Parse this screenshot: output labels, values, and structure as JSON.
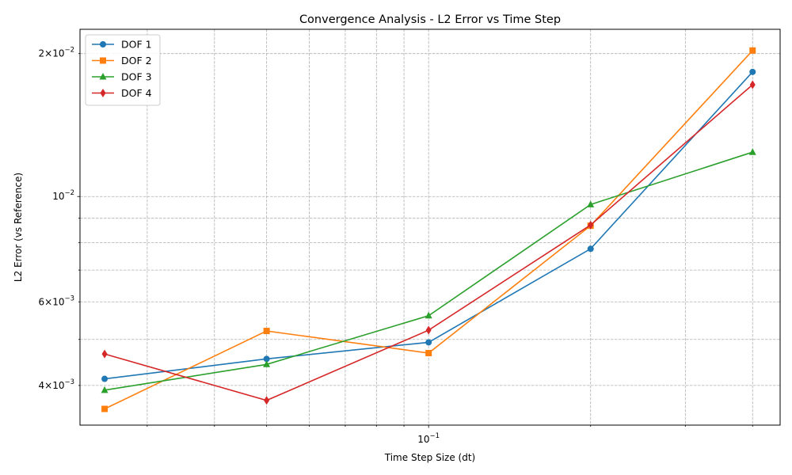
{
  "chart_data": {
    "type": "line",
    "title": "Convergence Analysis - L2 Error vs Time Step",
    "xlabel": "Time Step Size (dt)",
    "ylabel": "L2 Error (vs Reference)",
    "xscale": "log",
    "yscale": "log",
    "xlim": [
      0.0225,
      0.45
    ],
    "ylim": [
      0.0033,
      0.0225
    ],
    "grid": "major and minor, dashed gray",
    "legend_position": "upper-left",
    "x_tick_labels": [
      {
        "value": 0.1,
        "base": "10",
        "exp": "−1"
      }
    ],
    "y_tick_labels": [
      {
        "value": 0.004,
        "mant": "4",
        "base": "10",
        "exp": "−3"
      },
      {
        "value": 0.006,
        "mant": "6",
        "base": "10",
        "exp": "−3"
      },
      {
        "value": 0.01,
        "mant": "",
        "base": "10",
        "exp": "−2"
      },
      {
        "value": 0.02,
        "mant": "2",
        "base": "10",
        "exp": "−2"
      }
    ],
    "x": [
      0.025,
      0.05,
      0.1,
      0.2,
      0.4
    ],
    "series": [
      {
        "name": "DOF 1",
        "color": "#1f77b4",
        "marker": "circle",
        "values": [
          0.00413,
          0.00455,
          0.00493,
          0.00776,
          0.0183
        ]
      },
      {
        "name": "DOF 2",
        "color": "#ff7f0e",
        "marker": "square",
        "values": [
          0.00357,
          0.00521,
          0.00468,
          0.00868,
          0.0203
        ]
      },
      {
        "name": "DOF 3",
        "color": "#2ca02c",
        "marker": "triangle",
        "values": [
          0.00391,
          0.00443,
          0.00561,
          0.00962,
          0.0124
        ]
      },
      {
        "name": "DOF 4",
        "color": "#d62728",
        "marker": "diamond",
        "values": [
          0.00466,
          0.00372,
          0.00523,
          0.00871,
          0.0172
        ]
      }
    ]
  }
}
